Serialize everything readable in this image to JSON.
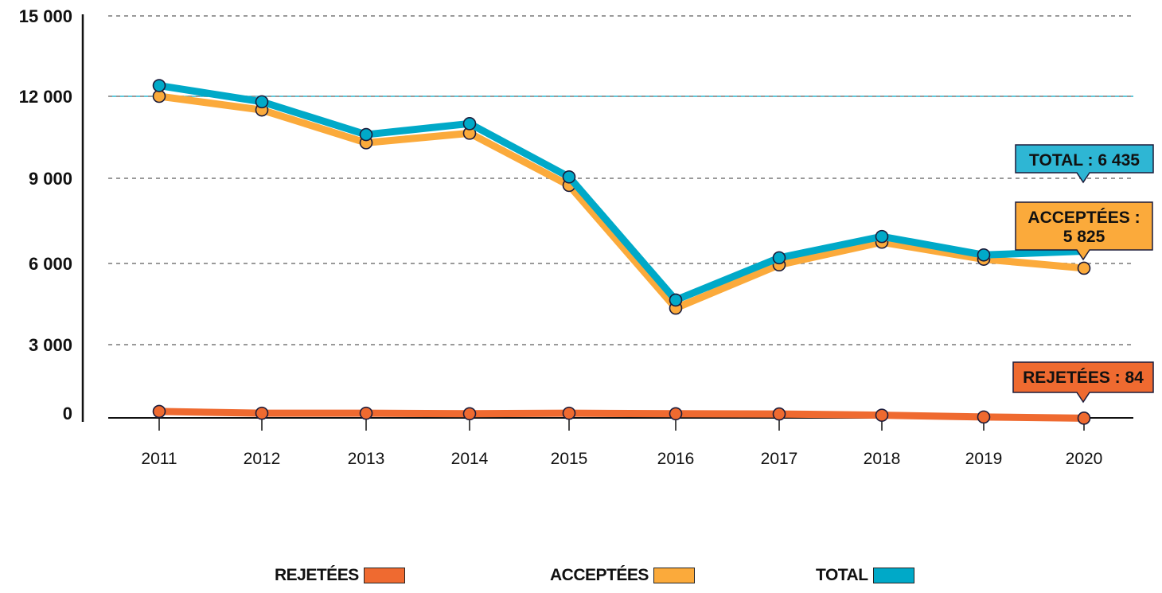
{
  "chart_data": {
    "type": "line",
    "title": "",
    "xlabel": "",
    "ylabel": "",
    "x": [
      "2011",
      "2012",
      "2013",
      "2014",
      "2015",
      "2016",
      "2017",
      "2018",
      "2019",
      "2020"
    ],
    "ylim": [
      0,
      15000
    ],
    "yticks": [
      0,
      3000,
      6000,
      9000,
      12000,
      15000
    ],
    "ytick_labels": [
      "0",
      "3 000",
      "6 000",
      "9 000",
      "12 000",
      "15 000"
    ],
    "grid": "horizontal dashed",
    "legend_position": "bottom",
    "series": [
      {
        "name": "REJETÉES",
        "color": "#EF6A30",
        "values": [
          350,
          280,
          280,
          260,
          280,
          260,
          250,
          200,
          130,
          84
        ]
      },
      {
        "name": "ACCEPTÉES",
        "color": "#FBAA3B",
        "values": [
          12000,
          11500,
          10300,
          10650,
          8750,
          4350,
          5950,
          6750,
          6150,
          5825
        ]
      },
      {
        "name": "TOTAL",
        "color": "#00A9C8",
        "values": [
          12400,
          11800,
          10600,
          11000,
          9050,
          4650,
          6200,
          6950,
          6300,
          6435
        ]
      }
    ],
    "annotations": [
      {
        "series": "TOTAL",
        "x": "2020",
        "text": "TOTAL : 6 435",
        "color": "#2EB6D4"
      },
      {
        "series": "ACCEPTÉES",
        "x": "2020",
        "text_lines": [
          "ACCEPTÉES :",
          "5 825"
        ],
        "color": "#FBAA3B"
      },
      {
        "series": "REJETÉES",
        "x": "2020",
        "text": "REJETÉES :  84",
        "color": "#EF6A30"
      }
    ]
  },
  "legend": {
    "items": [
      {
        "label": "REJETÉES",
        "color": "#EF6A30"
      },
      {
        "label": "ACCEPTÉES",
        "color": "#FBAA3B"
      },
      {
        "label": "TOTAL",
        "color": "#00A9C8"
      }
    ]
  }
}
